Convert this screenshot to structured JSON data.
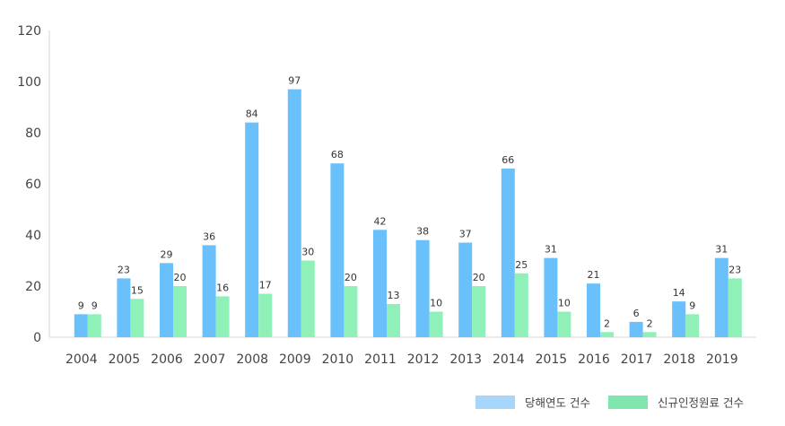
{
  "chart_data": {
    "type": "bar",
    "categories": [
      "2004",
      "2005",
      "2006",
      "2007",
      "2008",
      "2009",
      "2010",
      "2011",
      "2012",
      "2013",
      "2014",
      "2015",
      "2016",
      "2017",
      "2018",
      "2019"
    ],
    "series": [
      {
        "name": "당해연도 건수",
        "color": "#69c0fb",
        "legend_color": "#a6d7fa",
        "values": [
          9,
          23,
          29,
          36,
          84,
          97,
          68,
          42,
          38,
          37,
          66,
          31,
          21,
          6,
          14,
          31
        ]
      },
      {
        "name": "신규인정원료 건수",
        "color": "#8ff0b8",
        "legend_color": "#7fe6ad",
        "values": [
          9,
          15,
          20,
          16,
          17,
          30,
          20,
          13,
          10,
          20,
          25,
          10,
          2,
          2,
          9,
          23
        ]
      }
    ],
    "ylim": [
      0,
      120
    ],
    "yticks": [
      0,
      20,
      40,
      60,
      80,
      100,
      120
    ],
    "grid": false,
    "legend_position": "bottom-right"
  }
}
